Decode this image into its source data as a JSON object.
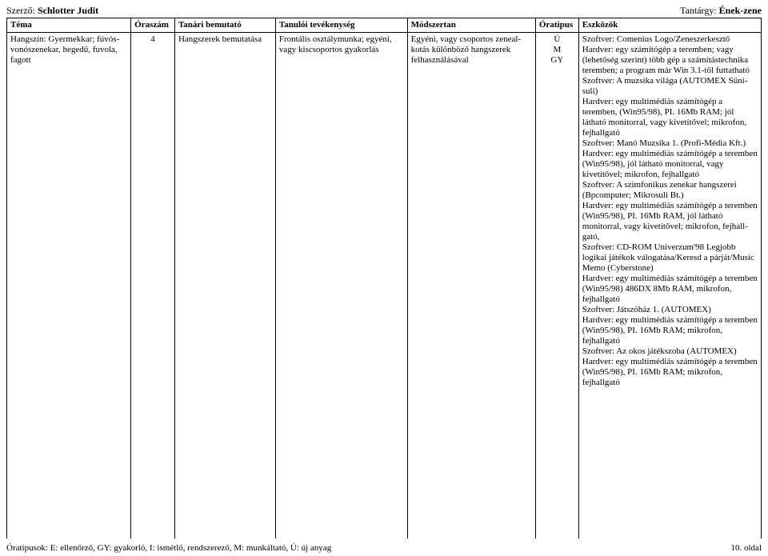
{
  "header": {
    "author_label": "Szerző: ",
    "author_name": "Schlotter Judit",
    "subject_label": "Tantárgy: ",
    "subject_name": "Ének-zene"
  },
  "columns": {
    "c1": "Téma",
    "c2": "Óraszám",
    "c3": "Tanári bemutató",
    "c4": "Tanulói tevékenység",
    "c5": "Módszertan",
    "c6": "Óratípus",
    "c7": "Eszközök"
  },
  "row": {
    "tema": "Hangszín: Gyermekkar; fúvós- vonószenekar, hegedű, fuvola, fagott",
    "oraszam": "4",
    "tanari": "Hangszerek bemutatása",
    "tanuloi": "Frontális osztálymunka; egyéni, vagy kiscsoportos gyakorlás",
    "modszertan": "Egyéni, vagy csoportos zeneal­kotás különböző hangszerek felhasználásával",
    "oratipus_l1": "Ú",
    "oratipus_l2": "M",
    "oratipus_l3": "GY",
    "eszkozok": "Szoftver: Comenius Logo/Zeneszerkesztő\nHardver: egy számítógép a terem­ben; vagy (lehetőség szerint) több gép a számítástechnika teremben; a program már Win 3.1-től futtatható\nSzoftver: A muzsika világa (AUTOMEX Süni-suli)\nHardver: egy multimédiás számító­gép a teremben, (Win95/98), PI. 16Mb RAM; jól látható monitorral, vagy kivetítővel; mikrofon, fejhall­gató\nSzoftver: Manó Muzsika 1. (Profi-Média Kft.)\nHardver: egy multimédiás számító­gép a teremben (Win95/98), jól lát­ható monitorral, vagy kivetítővel; mikrofon, fejhallgató\nSzoftver: A szimfonikus zenekar hangszerei (Bpcomputer; Mikrosuli Bt.)\nHardver: egy multimédiás számító­gép a teremben (Win95/98), PI. 16Mb RAM, jól látható monitorral, vagy kivetítővel; mikrofon, fejhall­gató,\nSzoftver: CD-ROM Univerzum'98 Legjobb logikai játékok válogatá­sa/Keresd a párját/Music Memo (Cyberstone)\nHardver: egy multimédiás számító­gép a teremben (Win95/98) 486DX 8Mb RAM, mikrofon, fejhallgató\nSzoftver: Játszóház 1. (AUTOMEX)\nHardver: egy multimédiás számító­gép a teremben (Win95/98), PI. 16Mb RAM; mikrofon, fejhallgató\nSzoftver: Az okos játékszoba (AUTOMEX)\nHardver: egy multimédiás számító­gép a teremben (Win95/98), PI. 16Mb RAM; mikrofon, fejhallgató"
  },
  "footer": {
    "left": "Óratípusok: E: ellenőrző, GY: gyakorló, I: ismétlő, rendszerező, M: munkáltató, Ú: új anyag",
    "right": "10. oldal"
  }
}
